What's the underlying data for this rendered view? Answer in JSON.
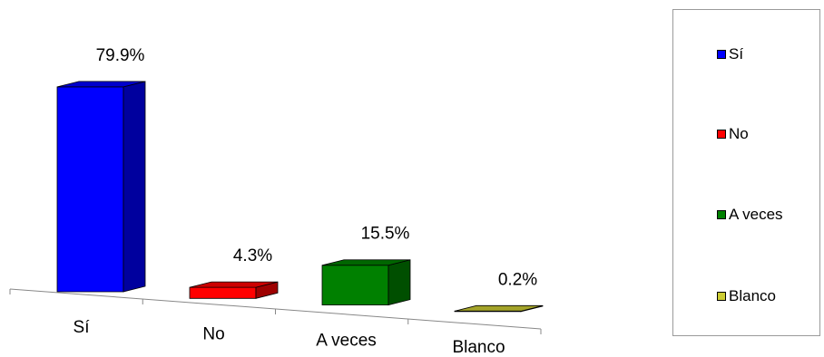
{
  "chart_data": {
    "type": "bar",
    "style": "3d",
    "categories": [
      "Sí",
      "No",
      "A veces",
      "Blanco"
    ],
    "values": [
      79.9,
      4.3,
      15.5,
      0.2
    ],
    "data_labels": [
      "79.9%",
      "4.3%",
      "15.5%",
      "0.2%"
    ],
    "unit": "%",
    "colors": [
      "#0000FF",
      "#FF0000",
      "#008000",
      "#CCCC33"
    ],
    "legend": {
      "placement": "right",
      "entries": [
        "Sí",
        "No",
        "A veces",
        "Blanco"
      ]
    },
    "grid": false
  }
}
